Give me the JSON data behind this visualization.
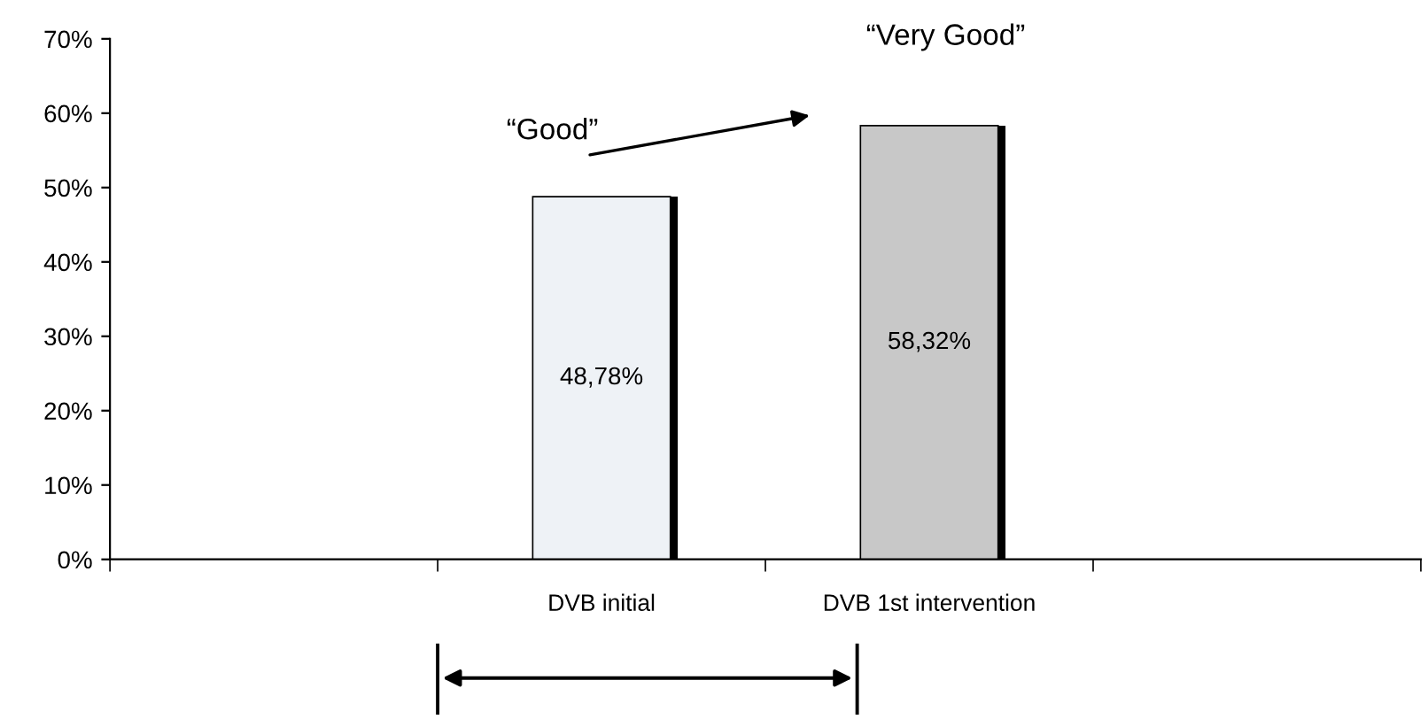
{
  "chart_data": {
    "type": "bar",
    "categories": [
      null,
      "DVB initial",
      "DVB 1st intervention",
      null
    ],
    "values": [
      null,
      48.78,
      58.32,
      null
    ],
    "colors": [
      "#eef2f6",
      "#eef2f6",
      "#c8c8c8",
      "#c8c8c8"
    ],
    "value_labels": [
      null,
      "48,78%",
      "58,32%",
      null
    ],
    "ylim": [
      0,
      70
    ],
    "yticks": [
      {
        "value": 0,
        "label": "0%"
      },
      {
        "value": 10,
        "label": "10%"
      },
      {
        "value": 20,
        "label": "20%"
      },
      {
        "value": 30,
        "label": "30%"
      },
      {
        "value": 40,
        "label": "40%"
      },
      {
        "value": 50,
        "label": "50%"
      },
      {
        "value": 60,
        "label": "60%"
      },
      {
        "value": 70,
        "label": "70%"
      }
    ],
    "annotations": [
      "“Good”",
      "“Very Good”"
    ],
    "grid": false,
    "legend": false
  }
}
